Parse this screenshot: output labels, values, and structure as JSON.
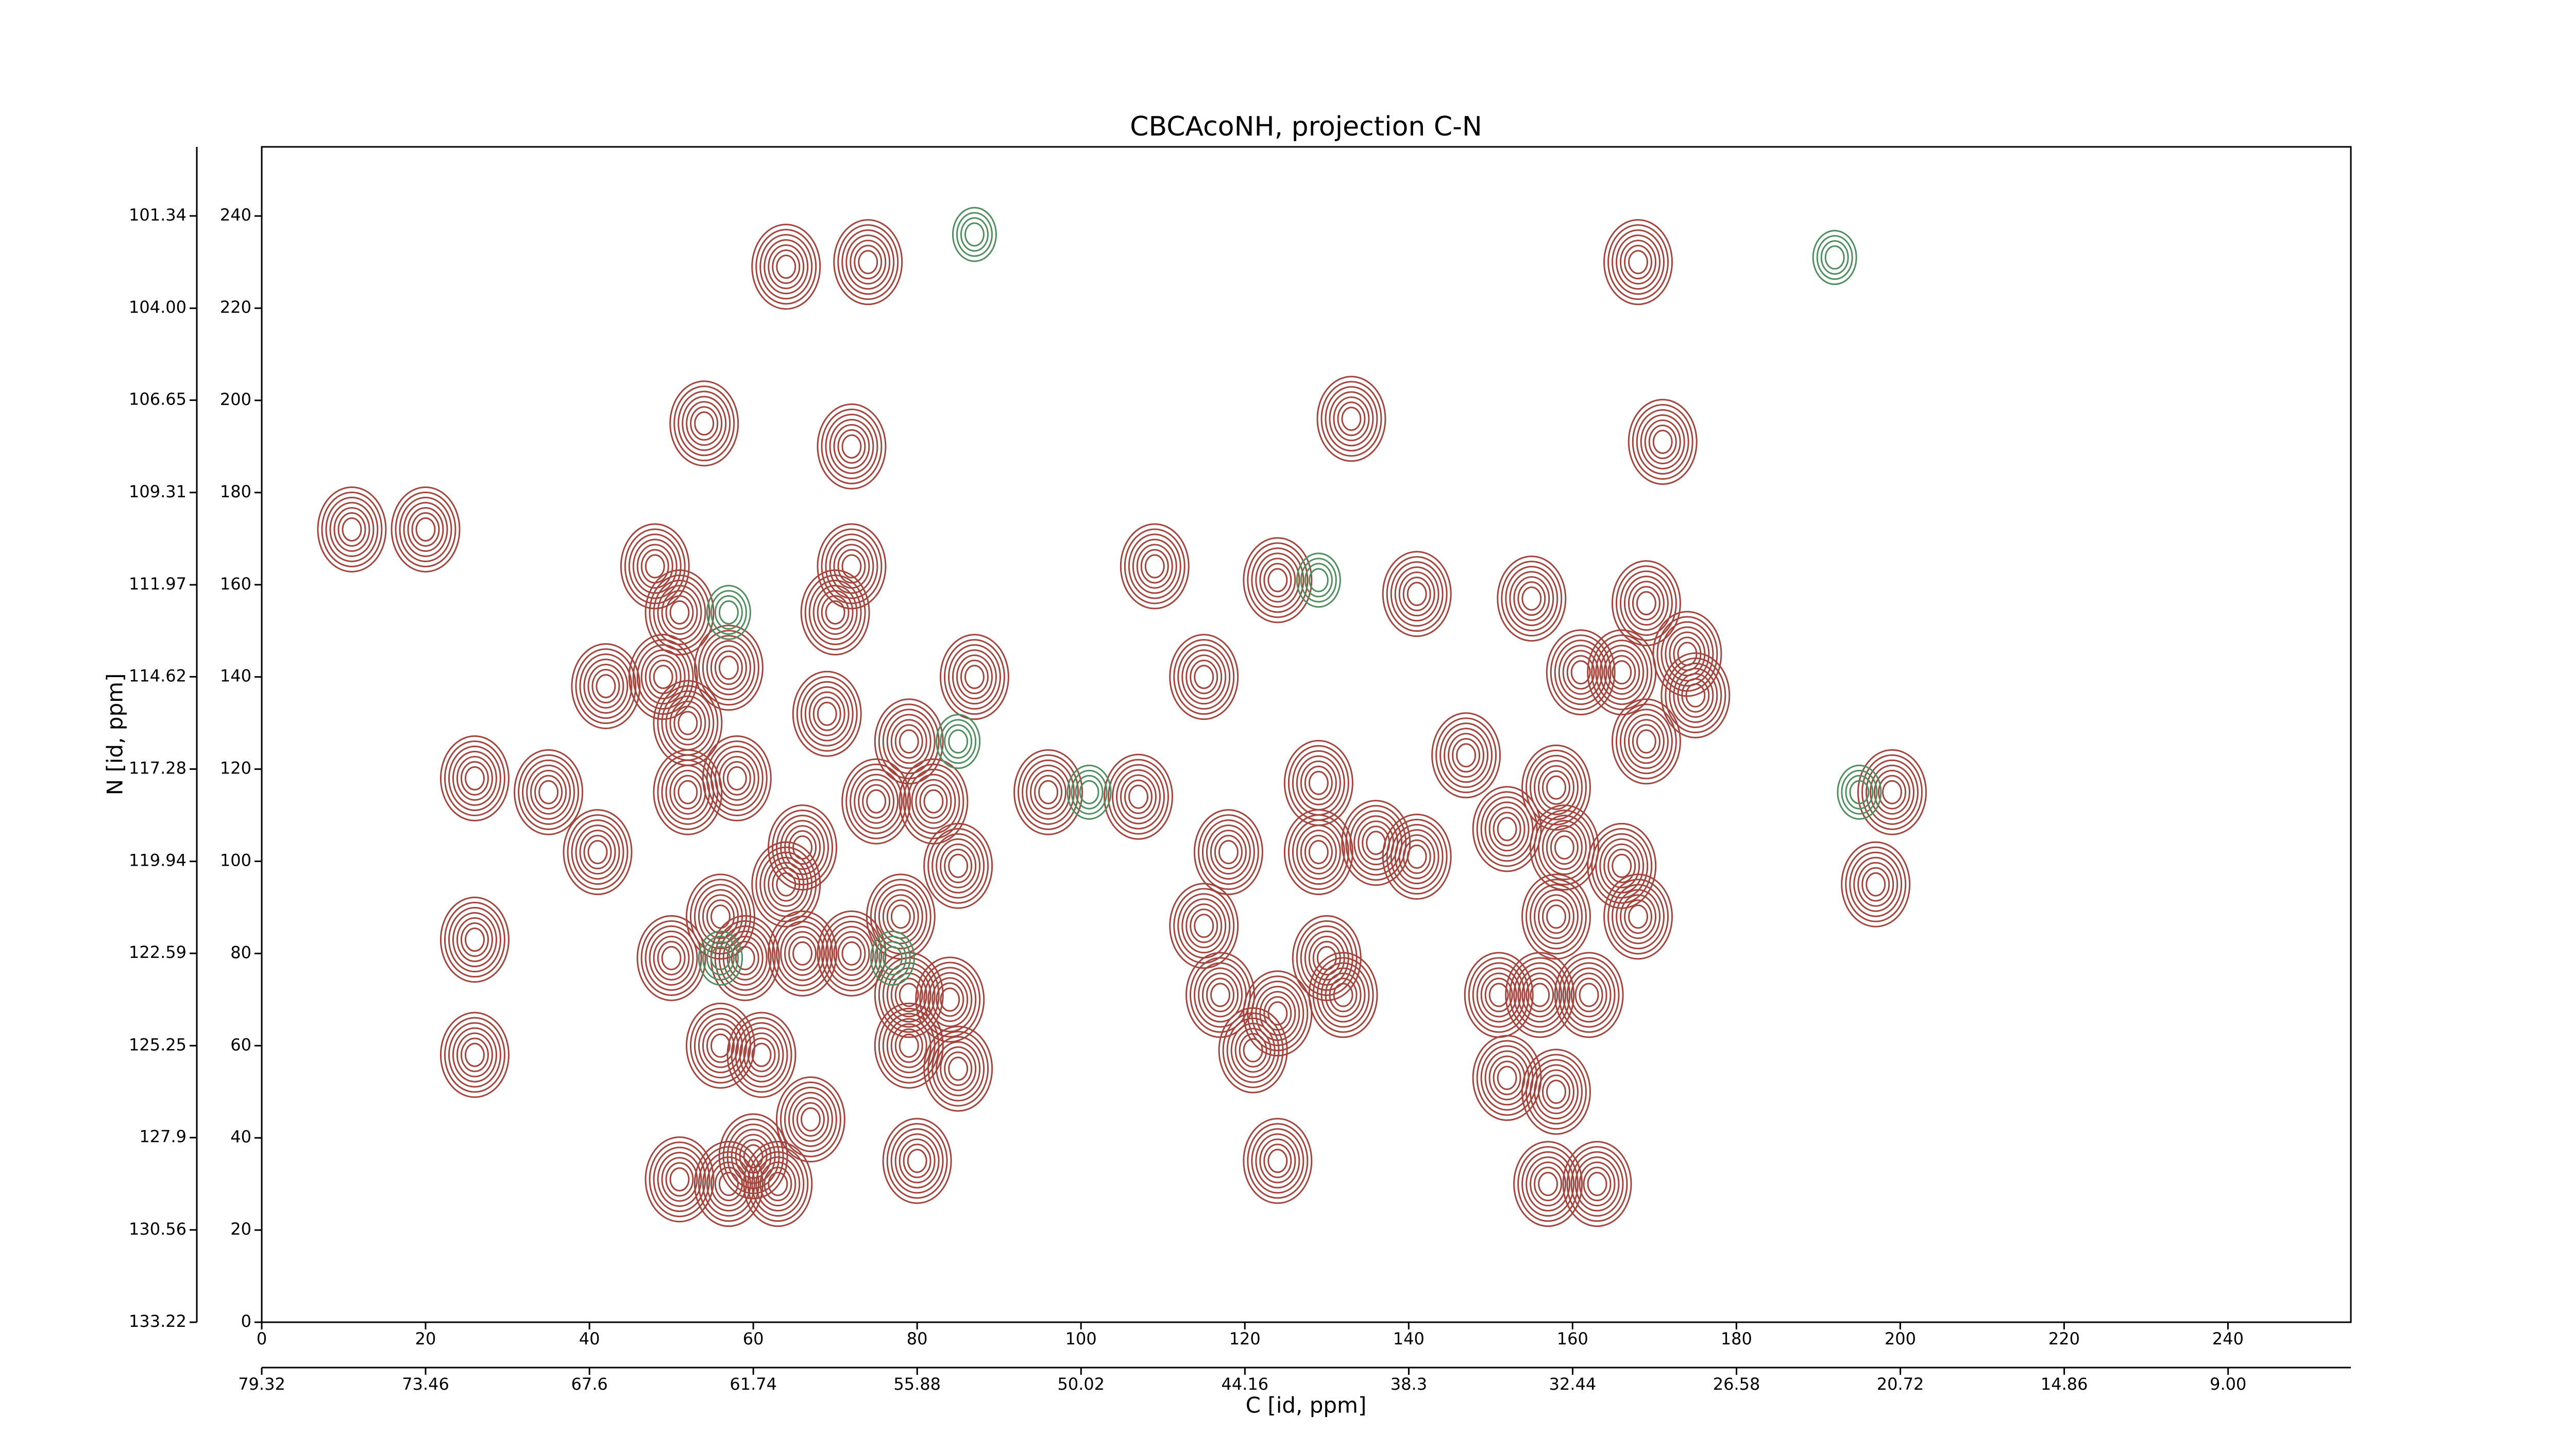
{
  "chart_data": {
    "type": "contour",
    "title": "CBCAcoNH, projection C-N",
    "xlabel": "C [id, ppm]",
    "ylabel": "N [id, ppm]",
    "xlim": [
      0,
      255
    ],
    "ylim": [
      0,
      255
    ],
    "xticks": [
      0,
      20,
      40,
      60,
      80,
      100,
      120,
      140,
      160,
      180,
      200,
      220,
      240
    ],
    "yticks": [
      0,
      20,
      40,
      60,
      80,
      100,
      120,
      140,
      160,
      180,
      200,
      220,
      240
    ],
    "x2lim": [
      79.32,
      4.61
    ],
    "x2ticks": [
      79.32,
      73.46,
      67.6,
      61.74,
      55.88,
      50.02,
      44.16,
      38.3,
      32.44,
      26.58,
      20.72,
      14.86,
      {
        "value": 9,
        "label": "9.00"
      }
    ],
    "y2lim": [
      133.22,
      99.35
    ],
    "y2ticks": [
      133.22,
      130.56,
      127.9,
      125.25,
      122.59,
      119.94,
      117.28,
      114.62,
      111.97,
      109.31,
      106.65,
      {
        "value": 104,
        "label": "104.00"
      },
      101.34
    ],
    "series": [
      {
        "color": "#a3453d",
        "x": [
          11,
          20,
          64,
          74,
          54,
          72,
          48,
          51,
          42,
          49,
          57,
          52,
          26,
          35,
          52,
          58,
          41,
          66,
          64,
          56,
          50,
          59,
          66,
          72,
          26,
          26,
          56,
          61,
          67,
          60,
          51,
          57,
          63,
          80,
          79,
          87,
          72,
          70,
          69,
          75,
          82,
          85,
          78,
          79,
          84,
          79,
          85,
          96,
          107,
          109,
          124,
          115,
          129,
          118,
          115,
          117,
          124,
          121,
          129,
          136,
          141,
          132,
          130,
          124,
          152,
          158,
          159,
          166,
          158,
          168,
          151,
          156,
          162,
          152,
          158,
          157,
          163,
          155,
          169,
          161,
          166,
          174,
          175,
          169,
          168,
          199,
          197,
          171,
          141,
          147,
          133
        ],
        "y": [
          172,
          172,
          229,
          230,
          195,
          190,
          164,
          154,
          138,
          140,
          142,
          130,
          118,
          115,
          115,
          118,
          102,
          103,
          95,
          88,
          79,
          79,
          80,
          80,
          83,
          58,
          60,
          58,
          44,
          36,
          31,
          30,
          30,
          35,
          126,
          140,
          164,
          154,
          132,
          113,
          113,
          99,
          88,
          71,
          70,
          60,
          55,
          115,
          114,
          164,
          161,
          140,
          117,
          102,
          86,
          71,
          67,
          59,
          102,
          104,
          101,
          71,
          79,
          35,
          107,
          116,
          103,
          99,
          88,
          88,
          71,
          71,
          71,
          53,
          50,
          30,
          30,
          157,
          156,
          141,
          141,
          145,
          136,
          126,
          230,
          115,
          95,
          191,
          158,
          123,
          196
        ]
      },
      {
        "color": "#4f8f5f",
        "x": [
          57,
          85,
          56,
          77,
          87,
          192,
          195,
          101,
          129
        ],
        "y": [
          154,
          126,
          79,
          79,
          236,
          231,
          115,
          115,
          161
        ]
      }
    ]
  }
}
